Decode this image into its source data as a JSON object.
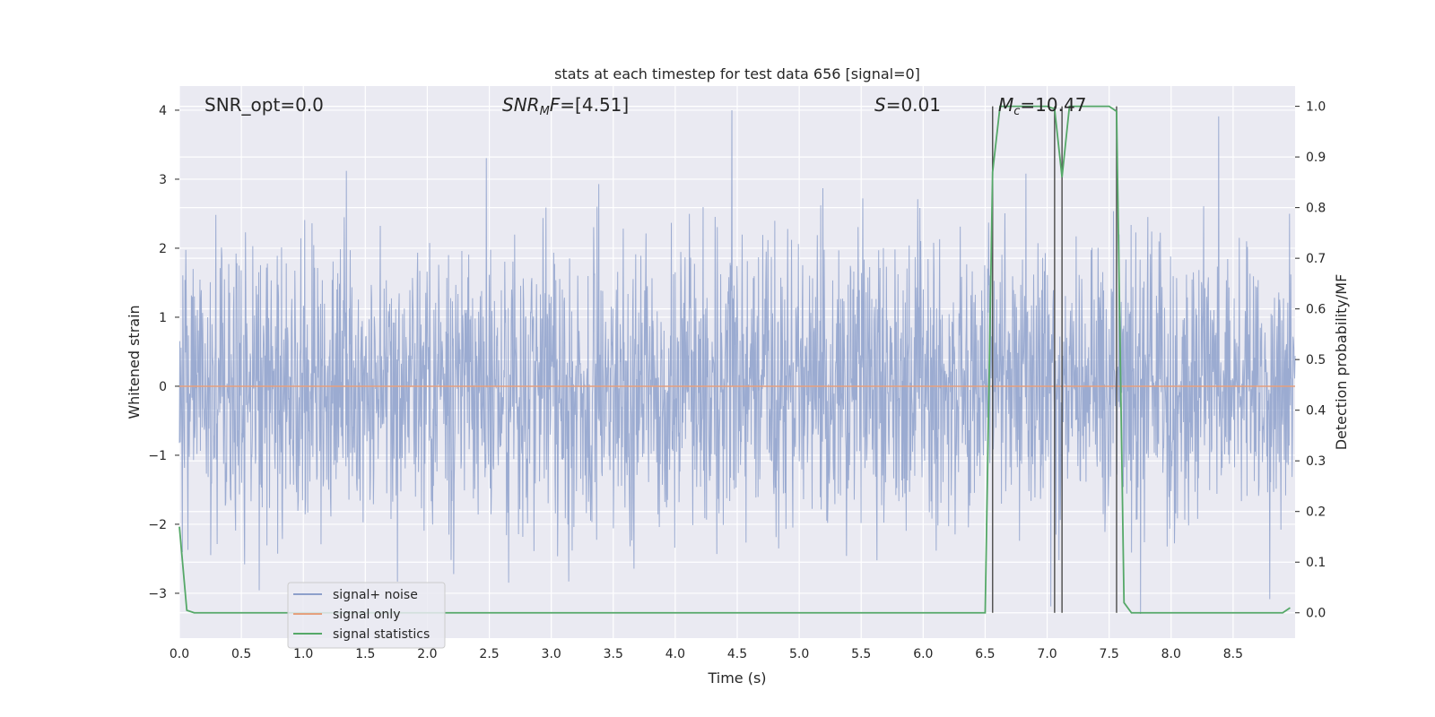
{
  "chart_data": {
    "type": "line",
    "title": "stats at each timestep for test data 656 [signal=0]",
    "xlabel": "Time (s)",
    "ylabel": "Whitened strain",
    "ylabel_right": "Detection probability/MF",
    "xlim": [
      0.0,
      9.0
    ],
    "ylim": [
      -3.65,
      4.35
    ],
    "ylim_right": [
      -0.05,
      1.04
    ],
    "xticks": [
      "0.0",
      "0.5",
      "1.0",
      "1.5",
      "2.0",
      "2.5",
      "3.0",
      "3.5",
      "4.0",
      "4.5",
      "5.0",
      "5.5",
      "6.0",
      "6.5",
      "7.0",
      "7.5",
      "8.0",
      "8.5"
    ],
    "yticks": [
      "−3",
      "−2",
      "−1",
      "0",
      "1",
      "2",
      "3",
      "4"
    ],
    "yticks_right": [
      "0.0",
      "0.1",
      "0.2",
      "0.3",
      "0.4",
      "0.5",
      "0.6",
      "0.7",
      "0.8",
      "0.9",
      "1.0"
    ],
    "grid": true,
    "legend_position": "lower-left",
    "annotations": {
      "snr_opt": "SNR_opt=0.0",
      "snr_mf": "SNR_MF=[4.51]",
      "s": "S=0.01",
      "mc": "M_c=10.47"
    },
    "series": [
      {
        "name": "signal+ noise",
        "color": "#8da0cb",
        "axis": "left",
        "description_values": "white noise, amplitude roughly within [-3.3, 4.0]",
        "noise_amplitude_range": [
          -3.3,
          4.0
        ]
      },
      {
        "name": "signal only",
        "color": "#e5a07e",
        "axis": "left",
        "x": [
          0.0,
          9.0
        ],
        "y": [
          0.0,
          0.0
        ]
      },
      {
        "name": "signal statistics",
        "color": "#55a868",
        "axis": "right",
        "x": [
          0.0,
          0.06,
          0.12,
          0.2,
          1.0,
          2.0,
          3.0,
          4.0,
          5.0,
          6.0,
          6.4,
          6.5,
          6.56,
          6.62,
          6.7,
          6.8,
          6.9,
          7.0,
          7.06,
          7.12,
          7.18,
          7.25,
          7.35,
          7.5,
          7.56,
          7.62,
          7.68,
          7.8,
          8.0,
          8.5,
          8.9,
          8.96
        ],
        "y": [
          0.17,
          0.005,
          0.0,
          0.0,
          0.0,
          0.0,
          0.0,
          0.0,
          0.0,
          0.0,
          0.0,
          0.0,
          0.87,
          1.0,
          1.0,
          1.0,
          1.0,
          1.0,
          0.995,
          0.86,
          1.0,
          1.0,
          1.0,
          1.0,
          0.99,
          0.02,
          0.0,
          0.0,
          0.0,
          0.0,
          0.0,
          0.01
        ]
      }
    ],
    "vertical_lines": {
      "color": "#555555",
      "x": [
        6.56,
        7.06,
        7.12,
        7.56
      ]
    }
  }
}
